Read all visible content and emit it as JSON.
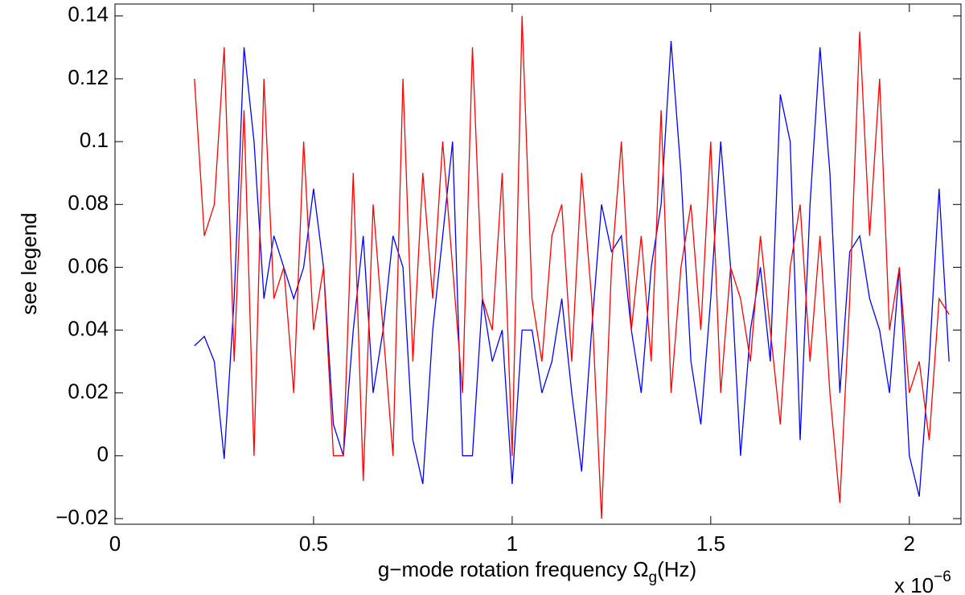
{
  "chart_data": {
    "type": "line",
    "ylabel": "see legend",
    "xlabel": {
      "main": "g−mode rotation frequency  Ω",
      "sub": "g",
      "tail": "(Hz)"
    },
    "x_multiplier": {
      "base": "x 10",
      "exponent": "−6"
    },
    "x": [
      0.2,
      0.225,
      0.25,
      0.275,
      0.3,
      0.325,
      0.35,
      0.375,
      0.4,
      0.425,
      0.45,
      0.475,
      0.5,
      0.525,
      0.55,
      0.575,
      0.6,
      0.625,
      0.65,
      0.675,
      0.7,
      0.725,
      0.75,
      0.775,
      0.8,
      0.825,
      0.85,
      0.875,
      0.9,
      0.925,
      0.95,
      0.975,
      1,
      1.025,
      1.05,
      1.075,
      1.1,
      1.125,
      1.15,
      1.175,
      1.2,
      1.225,
      1.25,
      1.275,
      1.3,
      1.325,
      1.35,
      1.375,
      1.4,
      1.425,
      1.45,
      1.475,
      1.5,
      1.525,
      1.55,
      1.575,
      1.6,
      1.625,
      1.65,
      1.675,
      1.7,
      1.725,
      1.75,
      1.775,
      1.8,
      1.825,
      1.85,
      1.875,
      1.9,
      1.925,
      1.95,
      1.975,
      2,
      2.025,
      2.05,
      2.075,
      2.1
    ],
    "series": [
      {
        "color": "#0000ff",
        "values": [
          0.035,
          0.038,
          0.03,
          -0.001,
          0.05,
          0.13,
          0.1,
          0.05,
          0.07,
          0.06,
          0.05,
          0.06,
          0.085,
          0.06,
          0.01,
          0.0,
          0.04,
          0.07,
          0.02,
          0.04,
          0.07,
          0.06,
          0.005,
          -0.009,
          0.04,
          0.07,
          0.1,
          0.0,
          0.0,
          0.05,
          0.03,
          0.04,
          -0.009,
          0.04,
          0.04,
          0.02,
          0.03,
          0.05,
          0.02,
          -0.005,
          0.04,
          0.08,
          0.065,
          0.07,
          0.04,
          0.02,
          0.06,
          0.08,
          0.132,
          0.09,
          0.03,
          0.01,
          0.05,
          0.1,
          0.06,
          0.0,
          0.04,
          0.06,
          0.03,
          0.115,
          0.1,
          0.005,
          0.08,
          0.13,
          0.09,
          0.02,
          0.065,
          0.07,
          0.05,
          0.04,
          0.02,
          0.06,
          0.0,
          -0.013,
          0.03,
          0.085,
          0.03
        ]
      },
      {
        "color": "#ff0000",
        "values": [
          0.12,
          0.07,
          0.08,
          0.13,
          0.03,
          0.11,
          0.0,
          0.12,
          0.05,
          0.06,
          0.02,
          0.1,
          0.04,
          0.06,
          0.0,
          0.0,
          0.09,
          -0.008,
          0.08,
          0.04,
          0.0,
          0.12,
          0.03,
          0.09,
          0.05,
          0.1,
          0.06,
          0.02,
          0.13,
          0.05,
          0.04,
          0.09,
          0.0,
          0.14,
          0.05,
          0.03,
          0.07,
          0.08,
          0.03,
          0.09,
          0.05,
          -0.02,
          0.06,
          0.1,
          0.04,
          0.07,
          0.03,
          0.11,
          0.02,
          0.06,
          0.08,
          0.04,
          0.1,
          0.02,
          0.06,
          0.05,
          0.03,
          0.07,
          0.04,
          0.01,
          0.06,
          0.08,
          0.03,
          0.07,
          0.02,
          -0.015,
          0.05,
          0.135,
          0.07,
          0.12,
          0.04,
          0.06,
          0.02,
          0.03,
          0.005,
          0.05,
          0.045
        ]
      }
    ],
    "xlim": [
      0,
      2.13
    ],
    "xticks": [
      0,
      0.5,
      1,
      1.5,
      2
    ],
    "ylim": [
      -0.0218,
      0.1438
    ],
    "yticks": [
      {
        "value": -0.02,
        "label": "−0.02"
      },
      0,
      0.02,
      0.04,
      0.06,
      0.08,
      0.1,
      0.12,
      0.14
    ]
  }
}
